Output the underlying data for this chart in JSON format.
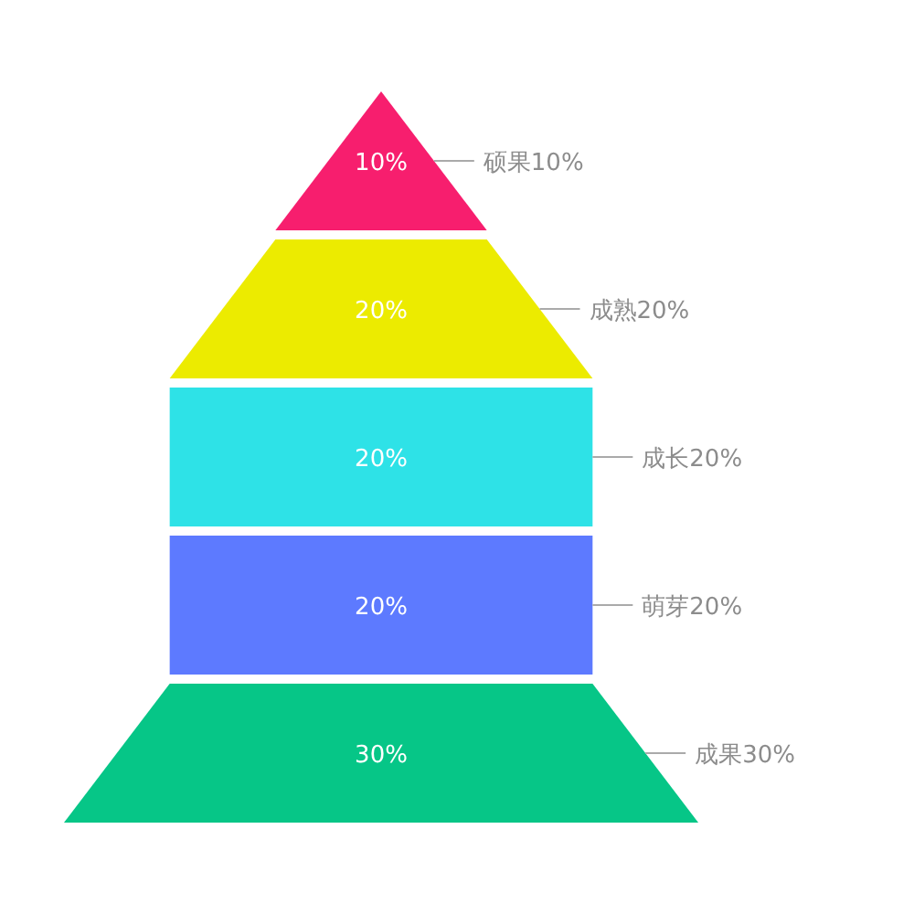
{
  "chart_data": {
    "type": "other",
    "categories": [
      "硕果",
      "成熟",
      "成长",
      "萌芽",
      "成果"
    ],
    "values": [
      10,
      20,
      20,
      20,
      30
    ],
    "value_labels": [
      "10%",
      "20%",
      "20%",
      "20%",
      "30%"
    ],
    "colors": [
      "#f71e6e",
      "#eceb00",
      "#2ee2e7",
      "#5d7aff",
      "#06c687"
    ]
  }
}
